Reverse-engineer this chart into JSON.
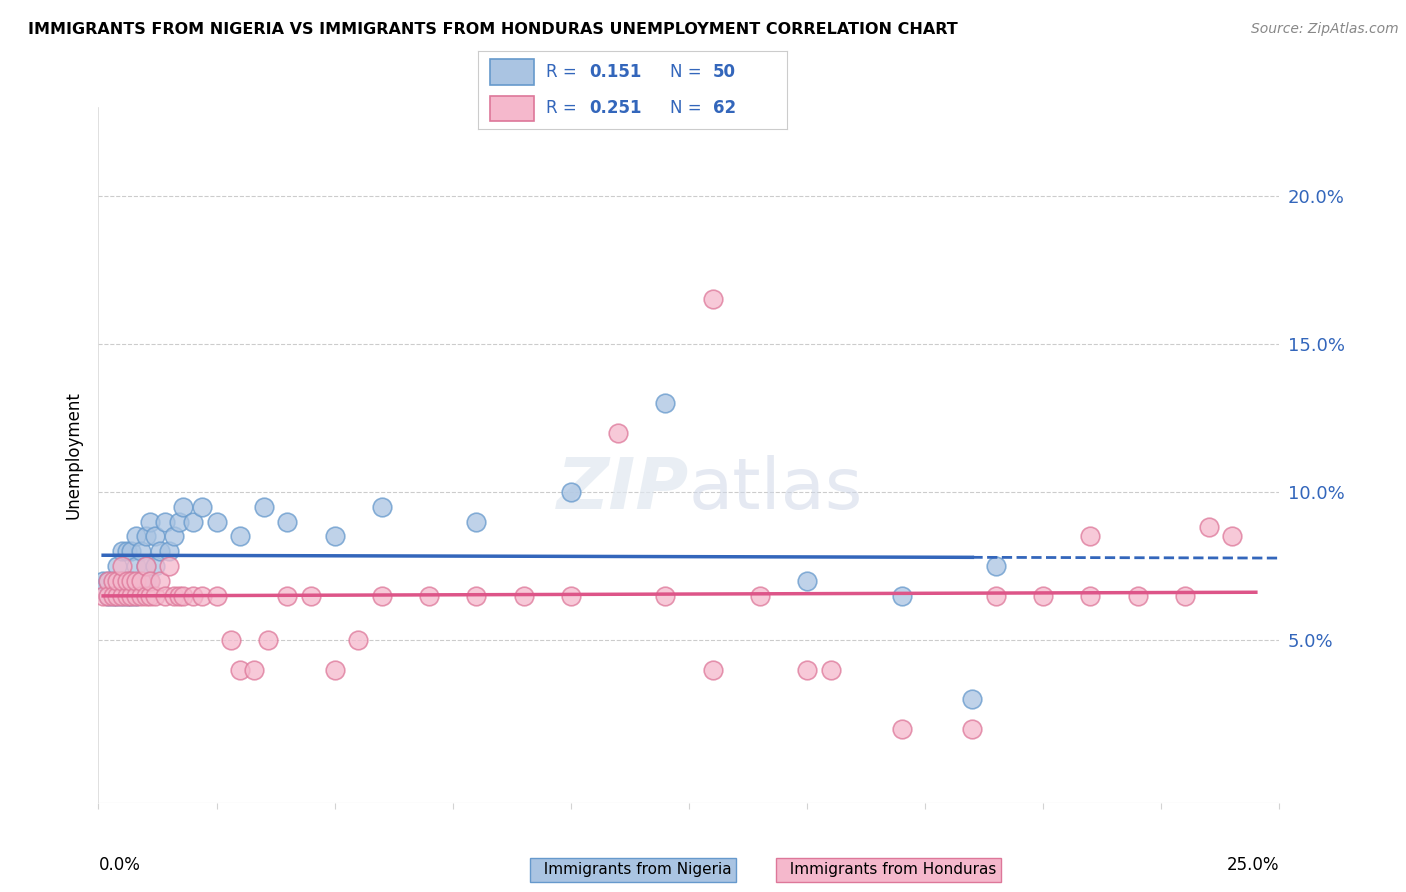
{
  "title": "IMMIGRANTS FROM NIGERIA VS IMMIGRANTS FROM HONDURAS UNEMPLOYMENT CORRELATION CHART",
  "source": "Source: ZipAtlas.com",
  "ylabel": "Unemployment",
  "xlim": [
    0.0,
    0.25
  ],
  "ylim": [
    -0.005,
    0.23
  ],
  "yticks": [
    0.05,
    0.1,
    0.15,
    0.2
  ],
  "ytick_labels": [
    "5.0%",
    "10.0%",
    "15.0%",
    "20.0%"
  ],
  "xtick_positions": [
    0.0,
    0.025,
    0.05,
    0.075,
    0.1,
    0.125,
    0.15,
    0.175,
    0.2,
    0.225,
    0.25
  ],
  "xtick_labels_ends": [
    "0.0%",
    "25.0%"
  ],
  "nigeria_color": "#aac4e2",
  "nigeria_edge_color": "#6699cc",
  "honduras_color": "#f5b8cc",
  "honduras_edge_color": "#dd7799",
  "nigeria_line_color": "#3366bb",
  "honduras_line_color": "#dd5588",
  "legend_color": "#3366bb",
  "watermark_text": "ZIPatlas",
  "nigeria_label": "Immigrants from Nigeria",
  "honduras_label": "Immigrants from Honduras",
  "nigeria_x": [
    0.001,
    0.002,
    0.002,
    0.003,
    0.003,
    0.004,
    0.004,
    0.004,
    0.005,
    0.005,
    0.005,
    0.006,
    0.006,
    0.006,
    0.007,
    0.007,
    0.007,
    0.008,
    0.008,
    0.008,
    0.009,
    0.009,
    0.01,
    0.01,
    0.01,
    0.011,
    0.011,
    0.012,
    0.012,
    0.013,
    0.014,
    0.015,
    0.016,
    0.017,
    0.018,
    0.02,
    0.022,
    0.025,
    0.03,
    0.035,
    0.04,
    0.05,
    0.06,
    0.08,
    0.1,
    0.12,
    0.15,
    0.17,
    0.185,
    0.19
  ],
  "nigeria_y": [
    0.07,
    0.07,
    0.065,
    0.07,
    0.065,
    0.07,
    0.065,
    0.075,
    0.065,
    0.07,
    0.08,
    0.065,
    0.07,
    0.08,
    0.065,
    0.07,
    0.08,
    0.065,
    0.075,
    0.085,
    0.07,
    0.08,
    0.07,
    0.075,
    0.085,
    0.07,
    0.09,
    0.075,
    0.085,
    0.08,
    0.09,
    0.08,
    0.085,
    0.09,
    0.095,
    0.09,
    0.095,
    0.09,
    0.085,
    0.095,
    0.09,
    0.085,
    0.095,
    0.09,
    0.1,
    0.13,
    0.07,
    0.065,
    0.03,
    0.075
  ],
  "honduras_x": [
    0.001,
    0.002,
    0.002,
    0.003,
    0.003,
    0.004,
    0.004,
    0.005,
    0.005,
    0.005,
    0.006,
    0.006,
    0.007,
    0.007,
    0.008,
    0.008,
    0.009,
    0.009,
    0.01,
    0.01,
    0.011,
    0.011,
    0.012,
    0.013,
    0.014,
    0.015,
    0.016,
    0.017,
    0.018,
    0.02,
    0.022,
    0.025,
    0.028,
    0.03,
    0.033,
    0.036,
    0.04,
    0.045,
    0.05,
    0.055,
    0.06,
    0.07,
    0.08,
    0.09,
    0.1,
    0.12,
    0.13,
    0.14,
    0.15,
    0.17,
    0.19,
    0.2,
    0.21,
    0.22,
    0.23,
    0.24,
    0.11,
    0.13,
    0.155,
    0.185,
    0.21,
    0.235
  ],
  "honduras_y": [
    0.065,
    0.07,
    0.065,
    0.07,
    0.065,
    0.065,
    0.07,
    0.065,
    0.07,
    0.075,
    0.065,
    0.07,
    0.065,
    0.07,
    0.065,
    0.07,
    0.065,
    0.07,
    0.065,
    0.075,
    0.065,
    0.07,
    0.065,
    0.07,
    0.065,
    0.075,
    0.065,
    0.065,
    0.065,
    0.065,
    0.065,
    0.065,
    0.05,
    0.04,
    0.04,
    0.05,
    0.065,
    0.065,
    0.04,
    0.05,
    0.065,
    0.065,
    0.065,
    0.065,
    0.065,
    0.065,
    0.165,
    0.065,
    0.04,
    0.02,
    0.065,
    0.065,
    0.065,
    0.065,
    0.065,
    0.085,
    0.12,
    0.04,
    0.04,
    0.02,
    0.085,
    0.088
  ],
  "nigeria_trend_solid_end": 0.185,
  "nigeria_trend_dashed_end": 0.25,
  "honduras_trend_solid_end": 0.245
}
